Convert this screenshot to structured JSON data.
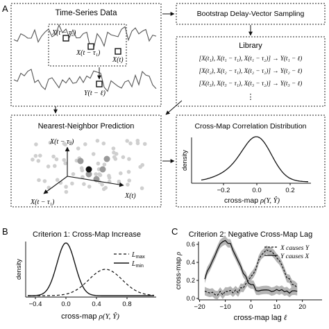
{
  "panel_A": {
    "letter": "A",
    "time_series": {
      "title": "Time-Series Data",
      "label_x_t_tau2": "X(t − τ₂)",
      "label_x_t_tau1": "X(t − τ₁)",
      "label_x_t": "X(t)",
      "label_y_t_ell": "Y(t − ℓ)"
    },
    "bootstrap": {
      "title": "Bootstrap Delay-Vector Sampling"
    },
    "library": {
      "title": "Library",
      "rows": [
        "[X(t₁), X(t₁ − τ₁), X(t₁ − τ₂)] → Y(t₁ − ℓ)",
        "[X(t₂), X(t₂ − τ₁), X(t₂ − τ₂)] → Y(t₂ − ℓ)",
        "[X(t₃), X(t₃ − τ₁), X(t₃ − τ₂)] → Y(t₃ − ℓ)"
      ],
      "ellipsis": "⋮"
    },
    "nn_prediction": {
      "title": "Nearest-Neighbor Prediction",
      "axis_x_t_tau2": "X(t − τ₂)",
      "axis_x_t": "X(t)",
      "axis_x_t_tau1": "X(t − τ₁)"
    },
    "cross_map_distribution": {
      "title": "Cross-Map Correlation Distribution",
      "ylabel": "density",
      "xlabel_prefix": "cross-map ",
      "xlabel_math": "ρ(Y, Ŷ)",
      "ticks": [
        "−0.2",
        "0.0",
        "0.2"
      ]
    }
  },
  "panel_B": {
    "letter": "B",
    "title": "Criterion 1: Cross-Map Increase",
    "ylabel": "density",
    "xlabel_prefix": "cross-map ",
    "xlabel_math": "ρ(Y, Ŷ)",
    "legend": [
      {
        "label": "L",
        "sub": "max",
        "style": "dashed"
      },
      {
        "label": "L",
        "sub": "min",
        "style": "solid"
      }
    ],
    "ticks": [
      "−0.4",
      "0.0",
      "0.4",
      "0.8"
    ]
  },
  "panel_C": {
    "letter": "C",
    "title": "Criterion 2: Negative Cross-Map Lag",
    "ylabel_prefix": "cross-map ",
    "ylabel_math": "ρ",
    "xlabel_prefix": "cross-map lag ",
    "xlabel_math": "ℓ",
    "legend": [
      {
        "label": "X causes Y",
        "style": "dashed"
      },
      {
        "label": "Y causes X",
        "style": "solid"
      }
    ],
    "xticks": [
      "−20",
      "−10",
      "0",
      "10",
      "20"
    ],
    "yticks": [
      "0.0",
      "0.2",
      "0.4",
      "0.6"
    ]
  },
  "colors": {
    "line": "#222222",
    "band": "#b4b4b4",
    "dot_light": "#cfcfcf",
    "dot_mid": "#9a9a9a",
    "dot_dark": "#111111"
  }
}
